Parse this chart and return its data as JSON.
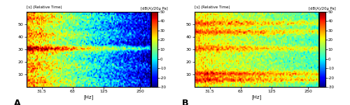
{
  "fig_width": 5.0,
  "fig_height": 1.51,
  "dpi": 100,
  "panel_A_label": "A",
  "panel_B_label": "B",
  "xlabel": "[Hz]",
  "ylabel_A": "[s] (Relative Time)",
  "ylabel_B": "[s] (Relative Time)",
  "colorbar_label": "[dB(A)/20µ Pa]",
  "xtick_positions": [
    15,
    45,
    75,
    110
  ],
  "xtick_labels": [
    "31.5",
    "63",
    "125",
    "250"
  ],
  "ytick_vals": [
    10,
    20,
    30,
    40,
    50
  ],
  "clim_min": -30,
  "clim_max": 50,
  "colorbar_ticks": [
    -30,
    -20,
    -10,
    0,
    10,
    20,
    30,
    40,
    50
  ],
  "cmap": "jet",
  "freq_bins": 120,
  "time_bins": 60,
  "seed_A": 42,
  "seed_B": 99,
  "bg_color": "#ffffff"
}
